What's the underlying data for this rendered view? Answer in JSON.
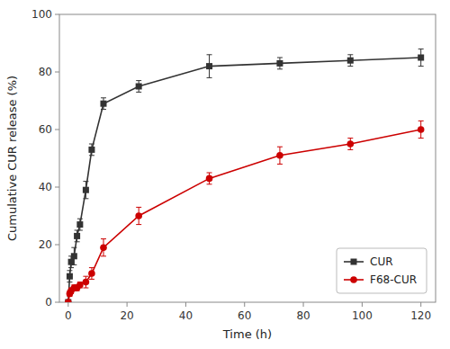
{
  "chart_data": {
    "type": "line",
    "xlabel": "Time (h)",
    "ylabel": "Cumulative CUR release (%)",
    "x": [
      0,
      0.5,
      1,
      2,
      3,
      4,
      6,
      8,
      12,
      24,
      48,
      72,
      96,
      120
    ],
    "series": [
      {
        "name": "CUR",
        "color": "#333333",
        "marker": "square",
        "values": [
          0,
          9,
          14,
          16,
          23,
          27,
          39,
          53,
          69,
          75,
          82,
          83,
          84,
          85
        ],
        "errors": [
          0,
          2,
          2,
          3,
          2,
          2,
          3,
          2,
          2,
          2,
          4,
          2,
          2,
          3
        ]
      },
      {
        "name": "F68-CUR",
        "color": "#cc0000",
        "marker": "circle",
        "values": [
          0,
          3,
          4,
          5,
          5,
          6,
          7,
          10,
          19,
          30,
          43,
          51,
          55,
          60
        ],
        "errors": [
          0,
          1,
          1,
          1,
          1,
          1,
          2,
          2,
          3,
          3,
          2,
          3,
          2,
          3
        ]
      }
    ],
    "xlim": [
      -3,
      125
    ],
    "ylim": [
      0,
      100
    ],
    "xticks": [
      0,
      20,
      40,
      60,
      80,
      100,
      120
    ],
    "yticks": [
      0,
      20,
      40,
      60,
      80,
      100
    ],
    "legend": "lower right",
    "grid": false
  }
}
